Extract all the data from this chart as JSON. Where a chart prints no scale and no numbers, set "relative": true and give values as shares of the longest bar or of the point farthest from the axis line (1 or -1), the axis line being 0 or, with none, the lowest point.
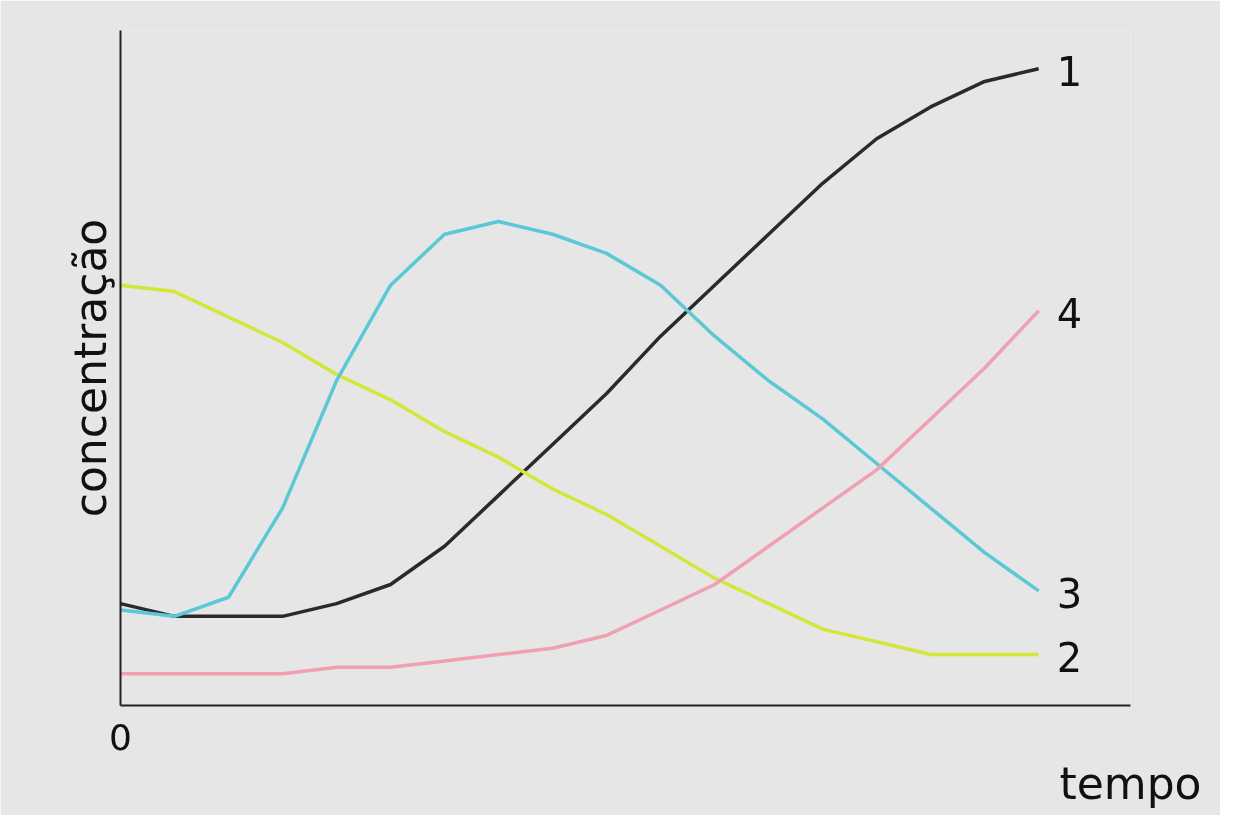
{
  "chart_data": {
    "type": "line",
    "relative": true,
    "xlabel": "tempo",
    "ylabel": "concentração",
    "annotations": [
      "0"
    ],
    "legend": false,
    "marker": "none",
    "line_style": "solid",
    "categories": [
      null,
      null,
      null,
      null,
      null,
      null,
      null,
      null,
      null,
      null,
      null,
      null,
      null,
      null,
      null,
      null,
      null,
      null
    ],
    "series": [
      {
        "name": "1",
        "color": "#2a2a2a",
        "values": [
          0.16,
          0.14,
          0.14,
          0.14,
          0.16,
          0.19,
          0.25,
          0.33,
          0.41,
          0.49,
          0.58,
          0.66,
          0.74,
          0.82,
          0.89,
          0.94,
          0.98,
          1.0
        ]
      },
      {
        "name": "2",
        "color": "#d4e63a",
        "values": [
          0.66,
          0.65,
          0.61,
          0.57,
          0.52,
          0.48,
          0.43,
          0.39,
          0.34,
          0.3,
          0.25,
          0.2,
          0.16,
          0.12,
          0.1,
          0.08,
          0.08,
          0.08
        ]
      },
      {
        "name": "3",
        "color": "#5bc8d6",
        "values": [
          0.15,
          0.14,
          0.17,
          0.31,
          0.51,
          0.66,
          0.74,
          0.76,
          0.74,
          0.71,
          0.66,
          0.58,
          0.51,
          0.45,
          0.38,
          0.31,
          0.24,
          0.18
        ]
      },
      {
        "name": "4",
        "color": "#f0a0b0",
        "values": [
          0.05,
          0.05,
          0.05,
          0.05,
          0.06,
          0.06,
          0.07,
          0.08,
          0.09,
          0.11,
          0.15,
          0.19,
          0.25,
          0.31,
          0.37,
          0.45,
          0.53,
          0.62
        ]
      }
    ]
  }
}
